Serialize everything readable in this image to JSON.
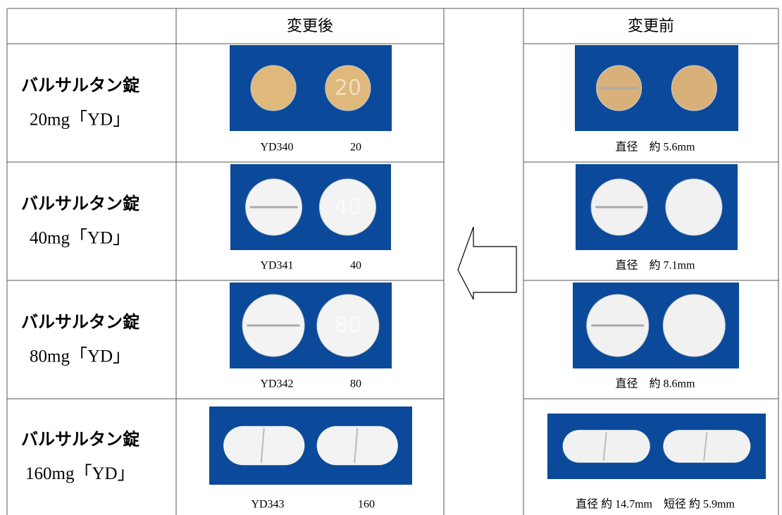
{
  "header": {
    "after": "変更後",
    "before": "変更前"
  },
  "rows": [
    {
      "name": "バルサルタン錠",
      "dose": "20mg「YD」",
      "after_code": "YD340",
      "after_number": "20",
      "before_size": "直径　約 5.6mm"
    },
    {
      "name": "バルサルタン錠",
      "dose": "40mg「YD」",
      "after_code": "YD341",
      "after_number": "40",
      "before_size": "直径　約 7.1mm"
    },
    {
      "name": "バルサルタン錠",
      "dose": "80mg「YD」",
      "after_code": "YD342",
      "after_number": "80",
      "before_size": "直径　約 8.6mm"
    },
    {
      "name": "バルサルタン錠",
      "dose": "160mg「YD」",
      "after_code": "YD343",
      "after_number": "160",
      "before_size": "直径 約 14.7mm　短径 約 5.9mm"
    }
  ]
}
